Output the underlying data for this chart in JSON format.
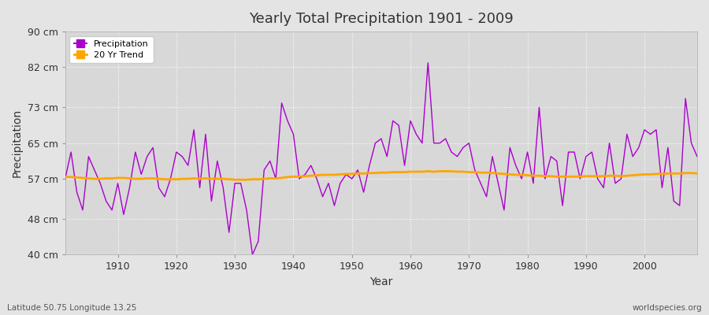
{
  "title": "Yearly Total Precipitation 1901 - 2009",
  "xlabel": "Year",
  "ylabel": "Precipitation",
  "subtitle": "Latitude 50.75 Longitude 13.25",
  "watermark": "worldspecies.org",
  "precip_color": "#AA00CC",
  "trend_color": "#FFA500",
  "bg_color": "#E4E4E4",
  "plot_bg_color": "#D8D8D8",
  "ylim": [
    40,
    90
  ],
  "yticks": [
    40,
    48,
    57,
    65,
    73,
    82,
    90
  ],
  "ytick_labels": [
    "40 cm",
    "48 cm",
    "57 cm",
    "65 cm",
    "73 cm",
    "82 cm",
    "90 cm"
  ],
  "xticks": [
    1910,
    1920,
    1930,
    1940,
    1950,
    1960,
    1970,
    1980,
    1990,
    2000
  ],
  "years": [
    1901,
    1902,
    1903,
    1904,
    1905,
    1906,
    1907,
    1908,
    1909,
    1910,
    1911,
    1912,
    1913,
    1914,
    1915,
    1916,
    1917,
    1918,
    1919,
    1920,
    1921,
    1922,
    1923,
    1924,
    1925,
    1926,
    1927,
    1928,
    1929,
    1930,
    1931,
    1932,
    1933,
    1934,
    1935,
    1936,
    1937,
    1938,
    1939,
    1940,
    1941,
    1942,
    1943,
    1944,
    1945,
    1946,
    1947,
    1948,
    1949,
    1950,
    1951,
    1952,
    1953,
    1954,
    1955,
    1956,
    1957,
    1958,
    1959,
    1960,
    1961,
    1962,
    1963,
    1964,
    1965,
    1966,
    1967,
    1968,
    1969,
    1970,
    1971,
    1972,
    1973,
    1974,
    1975,
    1976,
    1977,
    1978,
    1979,
    1980,
    1981,
    1982,
    1983,
    1984,
    1985,
    1986,
    1987,
    1988,
    1989,
    1990,
    1991,
    1992,
    1993,
    1994,
    1995,
    1996,
    1997,
    1998,
    1999,
    2000,
    2001,
    2002,
    2003,
    2004,
    2005,
    2006,
    2007,
    2008,
    2009
  ],
  "precip": [
    57,
    63,
    54,
    50,
    62,
    59,
    56,
    52,
    50,
    56,
    49,
    55,
    63,
    58,
    62,
    64,
    55,
    53,
    57,
    63,
    62,
    60,
    68,
    55,
    67,
    52,
    61,
    55,
    45,
    56,
    56,
    50,
    40,
    43,
    59,
    61,
    57,
    74,
    70,
    67,
    57,
    58,
    60,
    57,
    53,
    56,
    51,
    56,
    58,
    57,
    59,
    54,
    60,
    65,
    66,
    62,
    70,
    69,
    60,
    70,
    67,
    65,
    83,
    65,
    65,
    66,
    63,
    62,
    64,
    65,
    59,
    56,
    53,
    62,
    56,
    50,
    64,
    60,
    57,
    63,
    56,
    73,
    57,
    62,
    61,
    51,
    63,
    63,
    57,
    62,
    63,
    57,
    55,
    65,
    56,
    57,
    67,
    62,
    64,
    68,
    67,
    68,
    55,
    64,
    52,
    51,
    75,
    65,
    62
  ],
  "trend": [
    57.5,
    57.4,
    57.3,
    57.2,
    57.1,
    57.0,
    57.0,
    57.1,
    57.1,
    57.2,
    57.2,
    57.1,
    57.0,
    57.0,
    57.1,
    57.1,
    57.0,
    56.9,
    56.9,
    56.9,
    57.0,
    57.0,
    57.1,
    57.0,
    57.1,
    57.0,
    57.0,
    57.0,
    56.9,
    56.8,
    56.8,
    56.8,
    56.9,
    56.9,
    57.0,
    57.1,
    57.1,
    57.2,
    57.4,
    57.5,
    57.5,
    57.6,
    57.7,
    57.8,
    57.9,
    57.9,
    57.9,
    58.0,
    58.1,
    58.1,
    58.2,
    58.2,
    58.3,
    58.3,
    58.4,
    58.4,
    58.5,
    58.5,
    58.5,
    58.6,
    58.6,
    58.6,
    58.7,
    58.6,
    58.7,
    58.7,
    58.7,
    58.6,
    58.6,
    58.5,
    58.5,
    58.4,
    58.4,
    58.3,
    58.2,
    58.1,
    58.0,
    57.9,
    57.9,
    57.8,
    57.7,
    57.7,
    57.6,
    57.6,
    57.5,
    57.5,
    57.5,
    57.5,
    57.5,
    57.6,
    57.6,
    57.6,
    57.6,
    57.7,
    57.7,
    57.6,
    57.7,
    57.8,
    57.9,
    58.0,
    58.0,
    58.1,
    58.1,
    58.2,
    58.2,
    58.2,
    58.3,
    58.3,
    58.2
  ]
}
